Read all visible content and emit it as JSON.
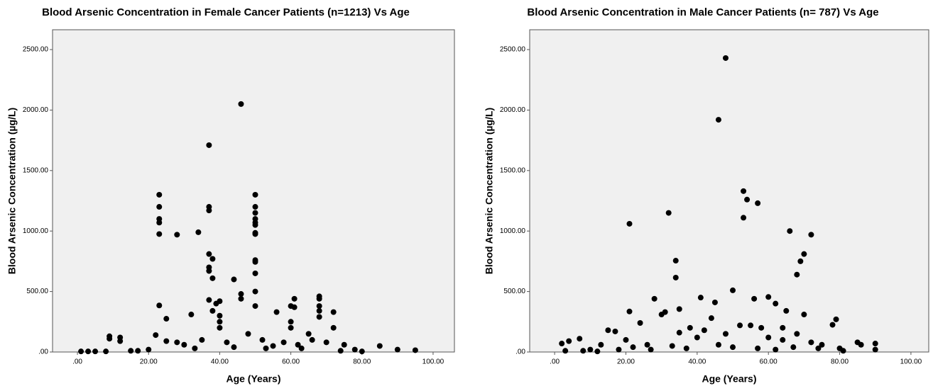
{
  "chart_data": [
    {
      "type": "scatter",
      "title": "Blood Arsenic Concentration in Female Cancer Patients (n=1213) Vs Age",
      "x_label": "Age (Years)",
      "y_label": "Blood Arsenic Concentration (µg/L)",
      "color": "#000000",
      "xlim": [
        -7,
        106
      ],
      "ylim": [
        0,
        2664
      ],
      "xticks": [
        {
          "value": 0,
          "label": ".00"
        },
        {
          "value": 20,
          "label": "20.00"
        },
        {
          "value": 40,
          "label": "40.00"
        },
        {
          "value": 60,
          "label": "60.00"
        },
        {
          "value": 80,
          "label": "80.00"
        },
        {
          "value": 100,
          "label": "100.00"
        }
      ],
      "yticks": [
        {
          "value": 0,
          "label": ".00"
        },
        {
          "value": 500,
          "label": "500.00"
        },
        {
          "value": 1000,
          "label": "1000.00"
        },
        {
          "value": 1500,
          "label": "1500.00"
        },
        {
          "value": 2000,
          "label": "2000.00"
        },
        {
          "value": 2500,
          "label": "2500.00"
        }
      ],
      "x": [
        46,
        37,
        23,
        23,
        23,
        23,
        23,
        37,
        37,
        37,
        38,
        37,
        37,
        38,
        37,
        34,
        28,
        50,
        50,
        50,
        50,
        50,
        50,
        50,
        50,
        50,
        50,
        50,
        50,
        50,
        44,
        46,
        46,
        68,
        68,
        68,
        68,
        68,
        61,
        60,
        61,
        72,
        56,
        32,
        25,
        23,
        40,
        39,
        38,
        40,
        40,
        40,
        60,
        60,
        65,
        1,
        3,
        5,
        9,
        9,
        12,
        12,
        15,
        20,
        22,
        25,
        28,
        30,
        35,
        42,
        48,
        52,
        55,
        58,
        62,
        66,
        70,
        72,
        75,
        78,
        80,
        85,
        90,
        95,
        8,
        17,
        33,
        44,
        53,
        63,
        74
      ],
      "values": [
        2050,
        1710,
        1300,
        1200,
        1100,
        1070,
        975,
        1200,
        1170,
        810,
        770,
        700,
        670,
        610,
        430,
        990,
        970,
        1300,
        1200,
        1150,
        1100,
        1070,
        1050,
        985,
        975,
        760,
        745,
        650,
        500,
        380,
        600,
        480,
        440,
        460,
        440,
        380,
        340,
        290,
        440,
        380,
        370,
        330,
        330,
        310,
        275,
        385,
        420,
        400,
        340,
        300,
        250,
        200,
        250,
        200,
        150,
        5,
        5,
        5,
        130,
        110,
        120,
        90,
        10,
        20,
        140,
        90,
        80,
        60,
        100,
        80,
        150,
        100,
        50,
        80,
        60,
        100,
        80,
        200,
        60,
        20,
        5,
        50,
        20,
        15,
        5,
        10,
        30,
        40,
        30,
        30,
        10
      ]
    },
    {
      "type": "scatter",
      "title": "Blood Arsenic Concentration in Male Cancer Patients (n= 787) Vs Age",
      "x_label": "Age (Years)",
      "y_label": "Blood Arsenic Concentration (µg/L)",
      "color": "#000000",
      "xlim": [
        -7,
        105
      ],
      "ylim": [
        0,
        2664
      ],
      "xticks": [
        {
          "value": 0,
          "label": ".00"
        },
        {
          "value": 20,
          "label": "20.00"
        },
        {
          "value": 40,
          "label": "40.00"
        },
        {
          "value": 60,
          "label": "60.00"
        },
        {
          "value": 80,
          "label": "80.00"
        },
        {
          "value": 100,
          "label": "100.00"
        }
      ],
      "yticks": [
        {
          "value": 0,
          "label": ".00"
        },
        {
          "value": 500,
          "label": "500.00"
        },
        {
          "value": 1000,
          "label": "1000.00"
        },
        {
          "value": 1500,
          "label": "1500.00"
        },
        {
          "value": 2000,
          "label": "2000.00"
        },
        {
          "value": 2500,
          "label": "2500.00"
        }
      ],
      "x": [
        48,
        46,
        53,
        54,
        57,
        53,
        32,
        21,
        66,
        72,
        70,
        69,
        68,
        34,
        34,
        50,
        60,
        41,
        28,
        56,
        45,
        62,
        21,
        31,
        30,
        65,
        70,
        79,
        78,
        64,
        35,
        2,
        4,
        7,
        10,
        13,
        15,
        17,
        20,
        24,
        26,
        35,
        38,
        40,
        42,
        44,
        48,
        52,
        55,
        58,
        60,
        64,
        68,
        72,
        75,
        80,
        85,
        86,
        90,
        90,
        3,
        8,
        12,
        18,
        22,
        27,
        33,
        37,
        46,
        50,
        57,
        62,
        67,
        74,
        81
      ],
      "values": [
        2430,
        1920,
        1330,
        1260,
        1230,
        1110,
        1150,
        1060,
        1000,
        970,
        810,
        750,
        640,
        755,
        615,
        510,
        455,
        450,
        440,
        440,
        410,
        400,
        335,
        330,
        310,
        340,
        310,
        270,
        225,
        200,
        355,
        70,
        90,
        110,
        20,
        60,
        180,
        170,
        100,
        240,
        60,
        160,
        200,
        120,
        180,
        280,
        150,
        220,
        220,
        200,
        120,
        100,
        150,
        80,
        60,
        30,
        80,
        60,
        70,
        20,
        10,
        10,
        5,
        20,
        40,
        20,
        50,
        30,
        60,
        40,
        30,
        20,
        40,
        30,
        10
      ]
    }
  ]
}
